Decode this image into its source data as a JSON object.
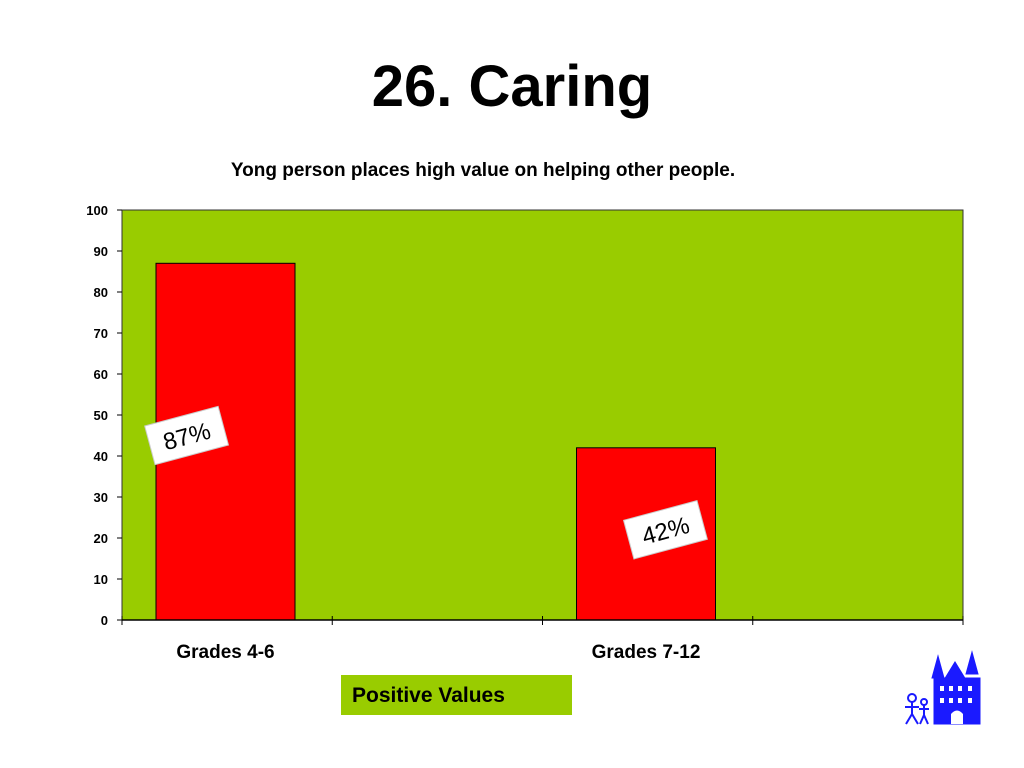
{
  "slide": {
    "title": "26. Caring"
  },
  "chart_data": {
    "type": "bar",
    "title": "Yong person places high value on helping other people.",
    "categories": [
      "Grades 4-6",
      "Grades 7-12"
    ],
    "series": [
      {
        "name": "Positive Values",
        "values": [
          87,
          42
        ]
      }
    ],
    "data_labels": [
      "87%",
      "42%"
    ],
    "xlabel": "",
    "ylabel": "",
    "ylim": [
      0,
      100
    ],
    "yticks": [
      0,
      10,
      20,
      30,
      40,
      50,
      60,
      70,
      80,
      90,
      100
    ],
    "grid": false,
    "legend_position": "bottom",
    "colors": {
      "plot_background": "#99cc00",
      "bar": "#ff0000",
      "label_box": "#ffffff"
    }
  },
  "logo": {
    "icon": "castle-icon",
    "color": "#1a1aff"
  }
}
